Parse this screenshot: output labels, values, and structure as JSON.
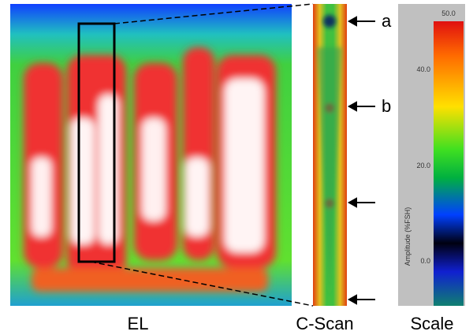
{
  "panels": {
    "el": {
      "label": "EL"
    },
    "cscan": {
      "label": "C-Scan",
      "markers": [
        "a",
        "b"
      ]
    },
    "scale": {
      "label": "Scale",
      "axis_title": "Amplitude (%FSH)",
      "ticks": [
        "50.0",
        "40.0",
        "20.0",
        "0.0"
      ]
    }
  }
}
